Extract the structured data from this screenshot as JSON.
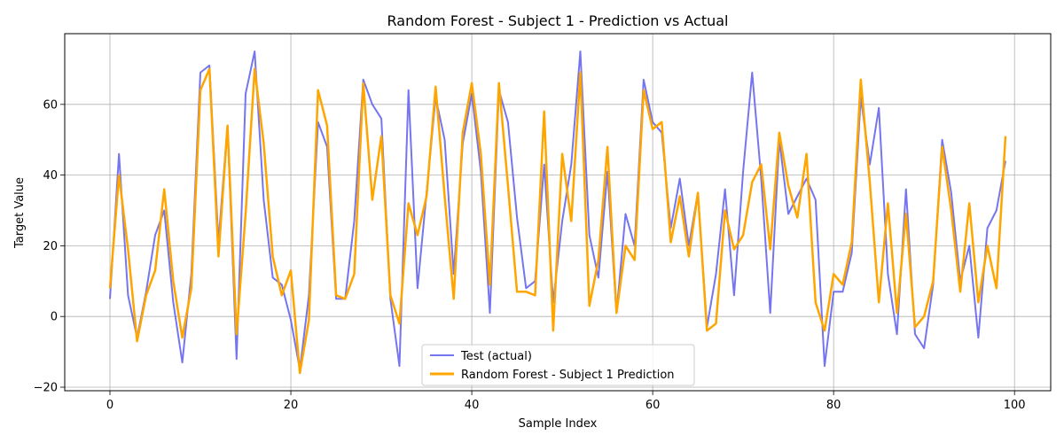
{
  "chart_data": {
    "type": "line",
    "title": "Random Forest - Subject 1 - Prediction vs Actual",
    "xlabel": "Sample Index",
    "ylabel": "Target Value",
    "xlim": [
      -5,
      104
    ],
    "ylim": [
      -21,
      80
    ],
    "xticks": [
      0,
      20,
      40,
      60,
      80,
      100
    ],
    "yticks": [
      -20,
      0,
      20,
      40,
      60
    ],
    "grid": true,
    "legend_position": "bottom-center",
    "x": [
      0,
      1,
      2,
      3,
      4,
      5,
      6,
      7,
      8,
      9,
      10,
      11,
      12,
      13,
      14,
      15,
      16,
      17,
      18,
      19,
      20,
      21,
      22,
      23,
      24,
      25,
      26,
      27,
      28,
      29,
      30,
      31,
      32,
      33,
      34,
      35,
      36,
      37,
      38,
      39,
      40,
      41,
      42,
      43,
      44,
      45,
      46,
      47,
      48,
      49,
      50,
      51,
      52,
      53,
      54,
      55,
      56,
      57,
      58,
      59,
      60,
      61,
      62,
      63,
      64,
      65,
      66,
      67,
      68,
      69,
      70,
      71,
      72,
      73,
      74,
      75,
      76,
      77,
      78,
      79,
      80,
      81,
      82,
      83,
      84,
      85,
      86,
      87,
      88,
      89,
      90,
      91,
      92,
      93,
      94,
      95,
      96,
      97,
      98,
      99
    ],
    "series": [
      {
        "name": "Test (actual)",
        "color": "#6666ee",
        "values": [
          5,
          46,
          6,
          -6,
          7,
          23,
          30,
          4,
          -13,
          12,
          69,
          71,
          21,
          54,
          -12,
          63,
          75,
          33,
          11,
          9,
          -1,
          -15,
          6,
          55,
          48,
          5,
          5,
          27,
          67,
          60,
          56,
          5,
          -14,
          64,
          8,
          35,
          62,
          50,
          12,
          49,
          63,
          41,
          1,
          64,
          55,
          28,
          8,
          10,
          43,
          4,
          27,
          43,
          75,
          23,
          11,
          41,
          1,
          29,
          20,
          67,
          55,
          52,
          25,
          39,
          20,
          35,
          -3,
          12,
          36,
          6,
          41,
          69,
          39,
          1,
          50,
          29,
          34,
          39,
          33,
          -14,
          7,
          7,
          18,
          62,
          43,
          59,
          12,
          -5,
          36,
          -5,
          -9,
          9,
          50,
          35,
          10,
          20,
          -6,
          25,
          30,
          44
        ]
      },
      {
        "name": "Random Forest - Subject 1 Prediction",
        "color": "#ffa500",
        "values": [
          8,
          40,
          19,
          -7,
          6,
          13,
          36,
          10,
          -6,
          8,
          64,
          70,
          17,
          54,
          -5,
          29,
          70,
          49,
          17,
          6,
          13,
          -16,
          -1,
          64,
          54,
          6,
          5,
          12,
          66,
          33,
          51,
          6,
          -2,
          32,
          23,
          34,
          65,
          34,
          5,
          52,
          66,
          46,
          9,
          66,
          37,
          7,
          7,
          6,
          58,
          -4,
          46,
          27,
          69,
          3,
          16,
          48,
          1,
          20,
          16,
          64,
          53,
          55,
          21,
          34,
          17,
          35,
          -4,
          -2,
          30,
          19,
          23,
          38,
          43,
          19,
          52,
          37,
          28,
          46,
          4,
          -4,
          12,
          9,
          21,
          67,
          38,
          4,
          32,
          1,
          29,
          -3,
          0,
          10,
          48,
          30,
          7,
          32,
          4,
          20,
          8,
          51
        ]
      }
    ]
  }
}
